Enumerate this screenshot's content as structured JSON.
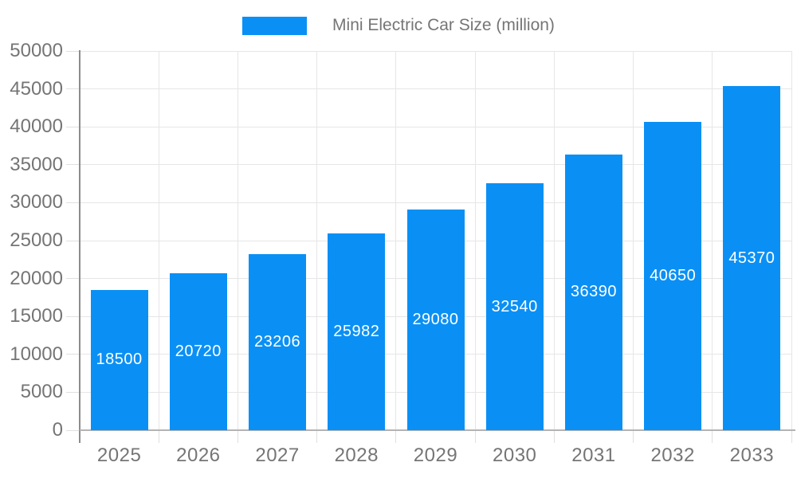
{
  "chart_data": {
    "type": "bar",
    "title": "Mini Electric Car Size (million)",
    "categories": [
      "2025",
      "2026",
      "2027",
      "2028",
      "2029",
      "2030",
      "2031",
      "2032",
      "2033"
    ],
    "values": [
      18500,
      20720,
      23206,
      25982,
      29080,
      32540,
      36390,
      40650,
      45370
    ],
    "xlabel": "",
    "ylabel": "",
    "ylim": [
      0,
      50000
    ],
    "ytick_step": 5000,
    "ytick_labels": [
      "0",
      "5000",
      "10000",
      "15000",
      "20000",
      "25000",
      "30000",
      "35000",
      "40000",
      "45000",
      "50000"
    ],
    "grid": true,
    "legend_position": "top",
    "value_labels": "inside-center"
  },
  "legend": {
    "label": "Mini Electric Car Size (million)"
  },
  "colors": {
    "bar": "#0A90F5",
    "bar_label": "#FFFFFF",
    "axis_label": "#757575",
    "grid": "#E6E6E6",
    "tick": "#E0E0E0",
    "y_axis_line": "#8C8C8C",
    "x_axis_line": "#B3B3B3"
  }
}
